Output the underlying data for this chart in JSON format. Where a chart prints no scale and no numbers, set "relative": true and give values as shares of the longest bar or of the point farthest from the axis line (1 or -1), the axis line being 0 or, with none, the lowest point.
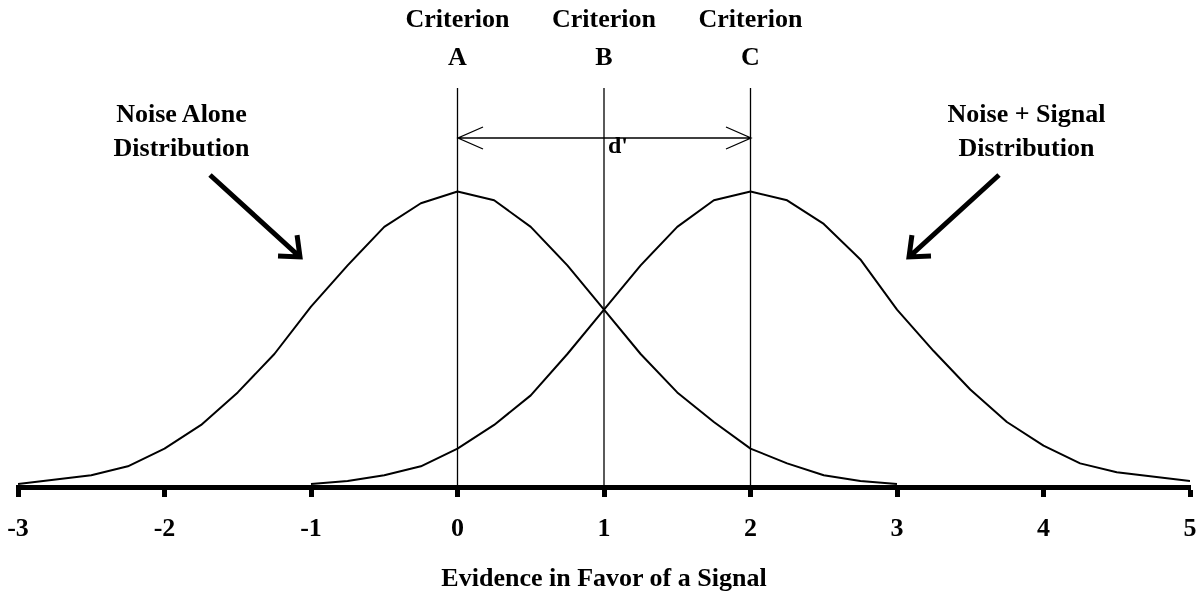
{
  "chart_data": {
    "type": "line",
    "relative": true,
    "xlabel": "Evidence in Favor of a Signal",
    "xlim": [
      -3,
      5
    ],
    "xticks": [
      -3,
      -2,
      -1,
      0,
      1,
      2,
      3,
      4,
      5
    ],
    "series": [
      {
        "name": "Noise Alone Distribution",
        "color": "#000000",
        "x": [
          -3,
          -2.5,
          -2.25,
          -2,
          -1.75,
          -1.5,
          -1.25,
          -1,
          -0.75,
          -0.5,
          -0.25,
          0,
          0.25,
          0.5,
          0.75,
          1,
          1.25,
          1.5,
          1.75,
          2,
          2.25,
          2.5,
          2.75,
          3
        ],
        "values": [
          0.01,
          0.04,
          0.07,
          0.13,
          0.21,
          0.32,
          0.45,
          0.61,
          0.75,
          0.88,
          0.96,
          1,
          0.97,
          0.88,
          0.75,
          0.6,
          0.45,
          0.32,
          0.22,
          0.13,
          0.08,
          0.04,
          0.02,
          0.01
        ]
      },
      {
        "name": "Noise + Signal Distribution",
        "color": "#000000",
        "x": [
          -1,
          -0.75,
          -0.5,
          -0.25,
          0,
          0.25,
          0.5,
          0.75,
          1,
          1.25,
          1.5,
          1.75,
          2,
          2.25,
          2.5,
          2.75,
          3,
          3.25,
          3.5,
          3.75,
          4,
          4.25,
          4.5,
          5
        ],
        "values": [
          0.01,
          0.02,
          0.04,
          0.07,
          0.13,
          0.21,
          0.31,
          0.45,
          0.6,
          0.75,
          0.88,
          0.97,
          1,
          0.97,
          0.89,
          0.77,
          0.6,
          0.46,
          0.33,
          0.22,
          0.14,
          0.08,
          0.05,
          0.02
        ]
      }
    ],
    "ref_lines": [
      {
        "axis": "x",
        "value": 0,
        "label": "Criterion A",
        "color": "#000000"
      },
      {
        "axis": "x",
        "value": 1,
        "label": "Criterion B",
        "color": "#000000"
      },
      {
        "axis": "x",
        "value": 2,
        "label": "Criterion C",
        "color": "#000000"
      }
    ],
    "annotations": [
      {
        "text": "d'",
        "x": 1,
        "y": 1.18
      }
    ]
  }
}
